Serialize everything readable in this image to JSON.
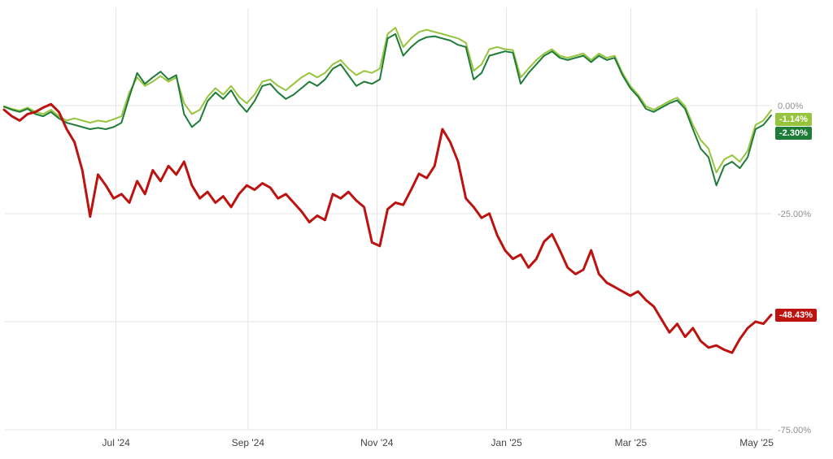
{
  "chart_data": {
    "type": "line",
    "title": "",
    "xlabel": "",
    "ylabel": "",
    "grid": true,
    "legend_position": "none",
    "grid_color": "#e4e4e4",
    "y_axis": {
      "range": [
        -75,
        22.5
      ],
      "grid": [
        0,
        -25,
        -50,
        -75
      ],
      "ticks": [
        {
          "value": 0,
          "label": "0.00%"
        },
        {
          "value": -25,
          "label": "-25.00%"
        },
        {
          "value": -75,
          "label": "-75.00%"
        }
      ]
    },
    "x_axis": {
      "ticks": [
        {
          "label": "Jul '24",
          "pos": 0.146
        },
        {
          "label": "Sep '24",
          "pos": 0.318
        },
        {
          "label": "Nov '24",
          "pos": 0.486
        },
        {
          "label": "Jan '25",
          "pos": 0.655
        },
        {
          "label": "Mar '25",
          "pos": 0.817
        },
        {
          "label": "May '25",
          "pos": 0.981
        }
      ]
    },
    "series": [
      {
        "name": "light-green",
        "color": "#97c43d",
        "width": 2,
        "end_label": "-1.14%",
        "end_value": -1.14,
        "values": [
          -0.2,
          -0.8,
          -1.2,
          -0.5,
          -1.5,
          -2.0,
          -1.0,
          -2.5,
          -3.5,
          -3.0,
          -3.5,
          -4.0,
          -3.5,
          -3.8,
          -3.2,
          -2.5,
          3.0,
          6.5,
          4.5,
          5.5,
          6.8,
          5.5,
          6.5,
          0.5,
          -2.0,
          -1.0,
          2.0,
          4.0,
          2.5,
          4.5,
          2.0,
          0.5,
          2.5,
          5.5,
          6.0,
          4.5,
          3.5,
          5.0,
          6.5,
          7.5,
          6.5,
          7.5,
          9.5,
          10.5,
          8.5,
          7.0,
          8.0,
          7.5,
          8.5,
          16.5,
          18.0,
          13.5,
          15.5,
          17.0,
          17.5,
          17.0,
          16.5,
          16.0,
          15.5,
          14.5,
          8.0,
          9.5,
          13.0,
          13.5,
          13.0,
          12.8,
          6.5,
          8.5,
          10.5,
          12.0,
          13.0,
          11.5,
          11.0,
          11.5,
          12.0,
          10.5,
          12.0,
          11.0,
          11.5,
          7.5,
          4.5,
          2.5,
          -0.2,
          -1.0,
          0.0,
          1.0,
          1.8,
          -0.2,
          -4.5,
          -8.0,
          -10.0,
          -15.5,
          -12.5,
          -11.5,
          -13.0,
          -10.5,
          -4.5,
          -3.5,
          -1.14
        ]
      },
      {
        "name": "dark-green",
        "color": "#1e7b38",
        "width": 2,
        "end_label": "-2.30%",
        "end_value": -2.3,
        "values": [
          -0.3,
          -1.0,
          -1.5,
          -0.8,
          -2.0,
          -2.5,
          -1.5,
          -3.0,
          -4.0,
          -4.5,
          -5.0,
          -5.5,
          -5.2,
          -5.5,
          -5.0,
          -4.0,
          2.0,
          7.5,
          5.0,
          6.5,
          7.8,
          6.0,
          7.0,
          -2.0,
          -5.0,
          -3.5,
          1.0,
          3.0,
          1.5,
          3.5,
          0.5,
          -1.5,
          1.0,
          4.5,
          5.0,
          3.0,
          1.5,
          2.5,
          4.0,
          5.5,
          4.5,
          6.0,
          8.5,
          9.5,
          7.0,
          4.5,
          5.5,
          5.0,
          6.0,
          15.5,
          16.5,
          11.5,
          13.5,
          15.0,
          15.8,
          16.0,
          15.5,
          15.0,
          14.0,
          13.5,
          6.0,
          7.5,
          11.5,
          12.0,
          12.5,
          12.2,
          5.0,
          7.5,
          9.5,
          11.5,
          12.5,
          11.0,
          10.5,
          11.0,
          11.5,
          10.0,
          11.5,
          10.5,
          11.0,
          7.0,
          4.0,
          2.0,
          -0.8,
          -1.5,
          -0.5,
          0.5,
          1.2,
          -0.8,
          -5.5,
          -10.0,
          -12.0,
          -18.5,
          -14.0,
          -13.0,
          -14.5,
          -12.0,
          -5.5,
          -4.5,
          -2.3
        ]
      },
      {
        "name": "red",
        "color": "#bc1310",
        "width": 3,
        "end_label": "-48.43%",
        "end_value": -48.43,
        "values": [
          -1.0,
          -2.5,
          -3.5,
          -2.0,
          -1.5,
          -0.5,
          0.3,
          -1.5,
          -5.5,
          -8.5,
          -15.0,
          -25.7,
          -16.0,
          -18.5,
          -21.5,
          -20.5,
          -22.5,
          -17.5,
          -20.5,
          -15.0,
          -17.5,
          -14.0,
          -16.0,
          -13.0,
          -18.5,
          -21.5,
          -20.0,
          -22.5,
          -21.0,
          -23.5,
          -20.5,
          -18.5,
          -19.5,
          -18.0,
          -19.0,
          -21.5,
          -20.5,
          -22.5,
          -24.5,
          -27.0,
          -25.5,
          -26.5,
          -20.5,
          -21.5,
          -20.0,
          -22.0,
          -23.5,
          -31.7,
          -32.5,
          -24.0,
          -22.5,
          -23.0,
          -19.5,
          -15.8,
          -16.8,
          -14.0,
          -5.5,
          -8.5,
          -13.0,
          -21.5,
          -23.5,
          -26.0,
          -25.0,
          -30.0,
          -33.5,
          -35.5,
          -34.5,
          -37.5,
          -35.5,
          -31.5,
          -29.8,
          -33.5,
          -37.5,
          -39.0,
          -38.0,
          -33.5,
          -39.0,
          -41.0,
          -42.0,
          -43.0,
          -44.0,
          -43.0,
          -45.0,
          -46.5,
          -49.5,
          -52.5,
          -50.5,
          -53.5,
          -51.5,
          -54.5,
          -56.0,
          -55.5,
          -56.5,
          -57.2,
          -54.0,
          -51.5,
          -50.0,
          -50.5,
          -48.43
        ]
      }
    ]
  }
}
